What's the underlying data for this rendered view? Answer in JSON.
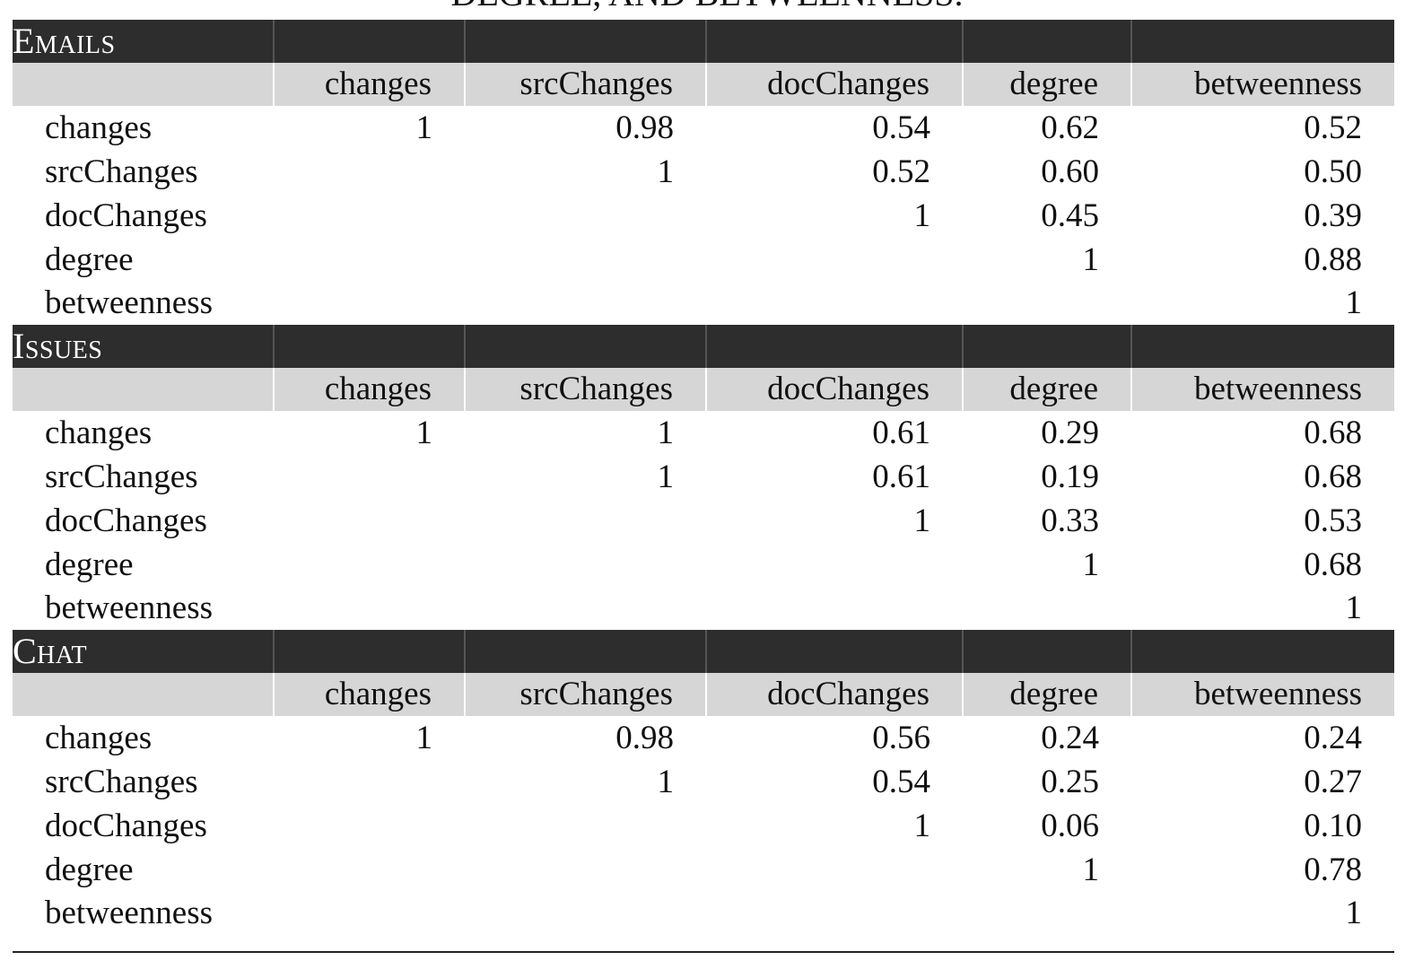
{
  "caption_fragment": "DEGREE, AND BETWEENNESS.",
  "columns": [
    "changes",
    "srcChanges",
    "docChanges",
    "degree",
    "betweenness"
  ],
  "sections": [
    {
      "title": "Emails",
      "rows": [
        {
          "label": "changes",
          "values": [
            "1",
            "0.98",
            "0.54",
            "0.62",
            "0.52"
          ]
        },
        {
          "label": "srcChanges",
          "values": [
            "",
            "1",
            "0.52",
            "0.60",
            "0.50"
          ]
        },
        {
          "label": "docChanges",
          "values": [
            "",
            "",
            "1",
            "0.45",
            "0.39"
          ]
        },
        {
          "label": "degree",
          "values": [
            "",
            "",
            "",
            "1",
            "0.88"
          ]
        },
        {
          "label": "betweenness",
          "values": [
            "",
            "",
            "",
            "",
            "1"
          ]
        }
      ]
    },
    {
      "title": "Issues",
      "rows": [
        {
          "label": "changes",
          "values": [
            "1",
            "1",
            "0.61",
            "0.29",
            "0.68"
          ]
        },
        {
          "label": "srcChanges",
          "values": [
            "",
            "1",
            "0.61",
            "0.19",
            "0.68"
          ]
        },
        {
          "label": "docChanges",
          "values": [
            "",
            "",
            "1",
            "0.33",
            "0.53"
          ]
        },
        {
          "label": "degree",
          "values": [
            "",
            "",
            "",
            "1",
            "0.68"
          ]
        },
        {
          "label": "betweenness",
          "values": [
            "",
            "",
            "",
            "",
            "1"
          ]
        }
      ]
    },
    {
      "title": "Chat",
      "rows": [
        {
          "label": "changes",
          "values": [
            "1",
            "0.98",
            "0.56",
            "0.24",
            "0.24"
          ]
        },
        {
          "label": "srcChanges",
          "values": [
            "",
            "1",
            "0.54",
            "0.25",
            "0.27"
          ]
        },
        {
          "label": "docChanges",
          "values": [
            "",
            "",
            "1",
            "0.06",
            "0.10"
          ]
        },
        {
          "label": "degree",
          "values": [
            "",
            "",
            "",
            "1",
            "0.78"
          ]
        },
        {
          "label": "betweenness",
          "values": [
            "",
            "",
            "",
            "",
            "1"
          ]
        }
      ]
    }
  ]
}
